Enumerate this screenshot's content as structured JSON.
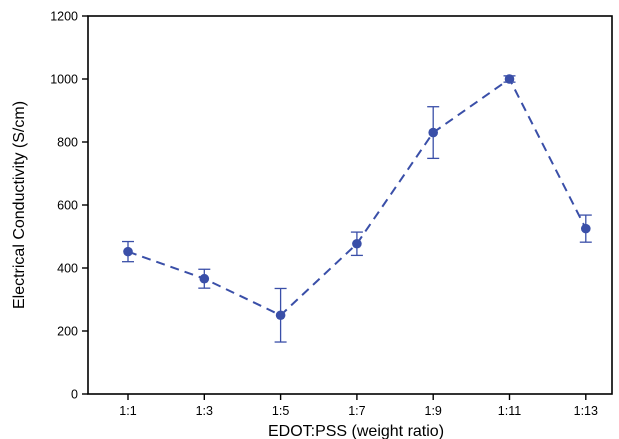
{
  "chart_data": {
    "type": "line",
    "title": "",
    "xlabel": "EDOT:PSS (weight ratio)",
    "ylabel": "Electrical Conductivity (S/cm)",
    "categories": [
      "1:1",
      "1:3",
      "1:5",
      "1:7",
      "1:9",
      "1:11",
      "1:13"
    ],
    "ylim": [
      0,
      1200
    ],
    "yticks": [
      "0",
      "200",
      "400",
      "600",
      "800",
      "1000",
      "1200"
    ],
    "grid": false,
    "legend": "none",
    "series": [
      {
        "values": [
          452,
          366,
          250,
          477,
          830,
          1000,
          525
        ],
        "errors": [
          32,
          30,
          85,
          37,
          82,
          10,
          43
        ],
        "color": "#3a4fa8",
        "line_style": "dashed",
        "marker": "circle"
      }
    ]
  }
}
